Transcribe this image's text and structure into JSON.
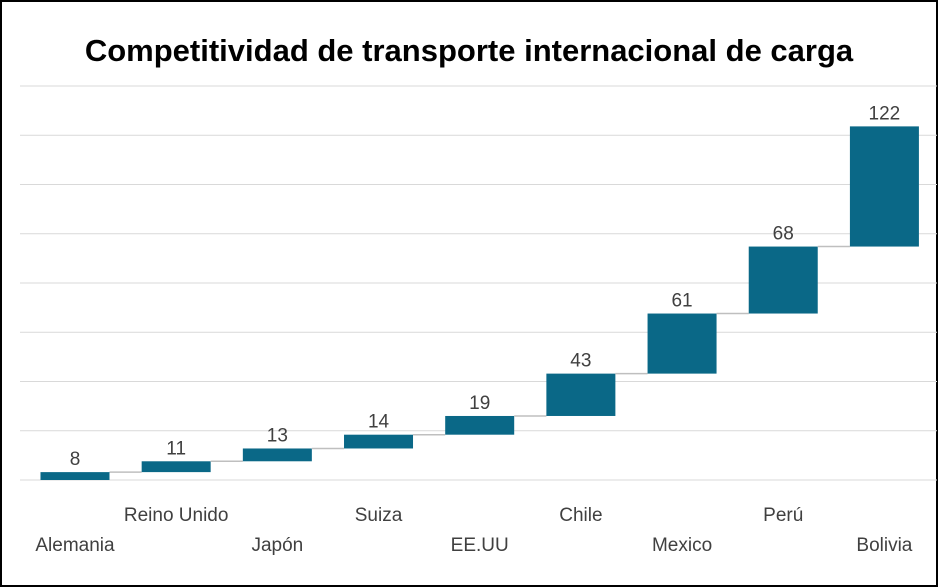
{
  "chart_data": {
    "type": "waterfall",
    "title": "Competitividad de transporte internacional de carga",
    "categories": [
      "Alemania",
      "Reino Unido",
      "Japón",
      "Suiza",
      "EE.UU",
      "Chile",
      "Mexico",
      "Perú",
      "Bolivia"
    ],
    "values": [
      8,
      11,
      13,
      14,
      19,
      43,
      61,
      68,
      122
    ],
    "color": "#0a6887",
    "ylim": [
      0,
      400
    ],
    "yticks": [
      0,
      50,
      100,
      150,
      200,
      250,
      300,
      350,
      400
    ],
    "grid": true
  }
}
